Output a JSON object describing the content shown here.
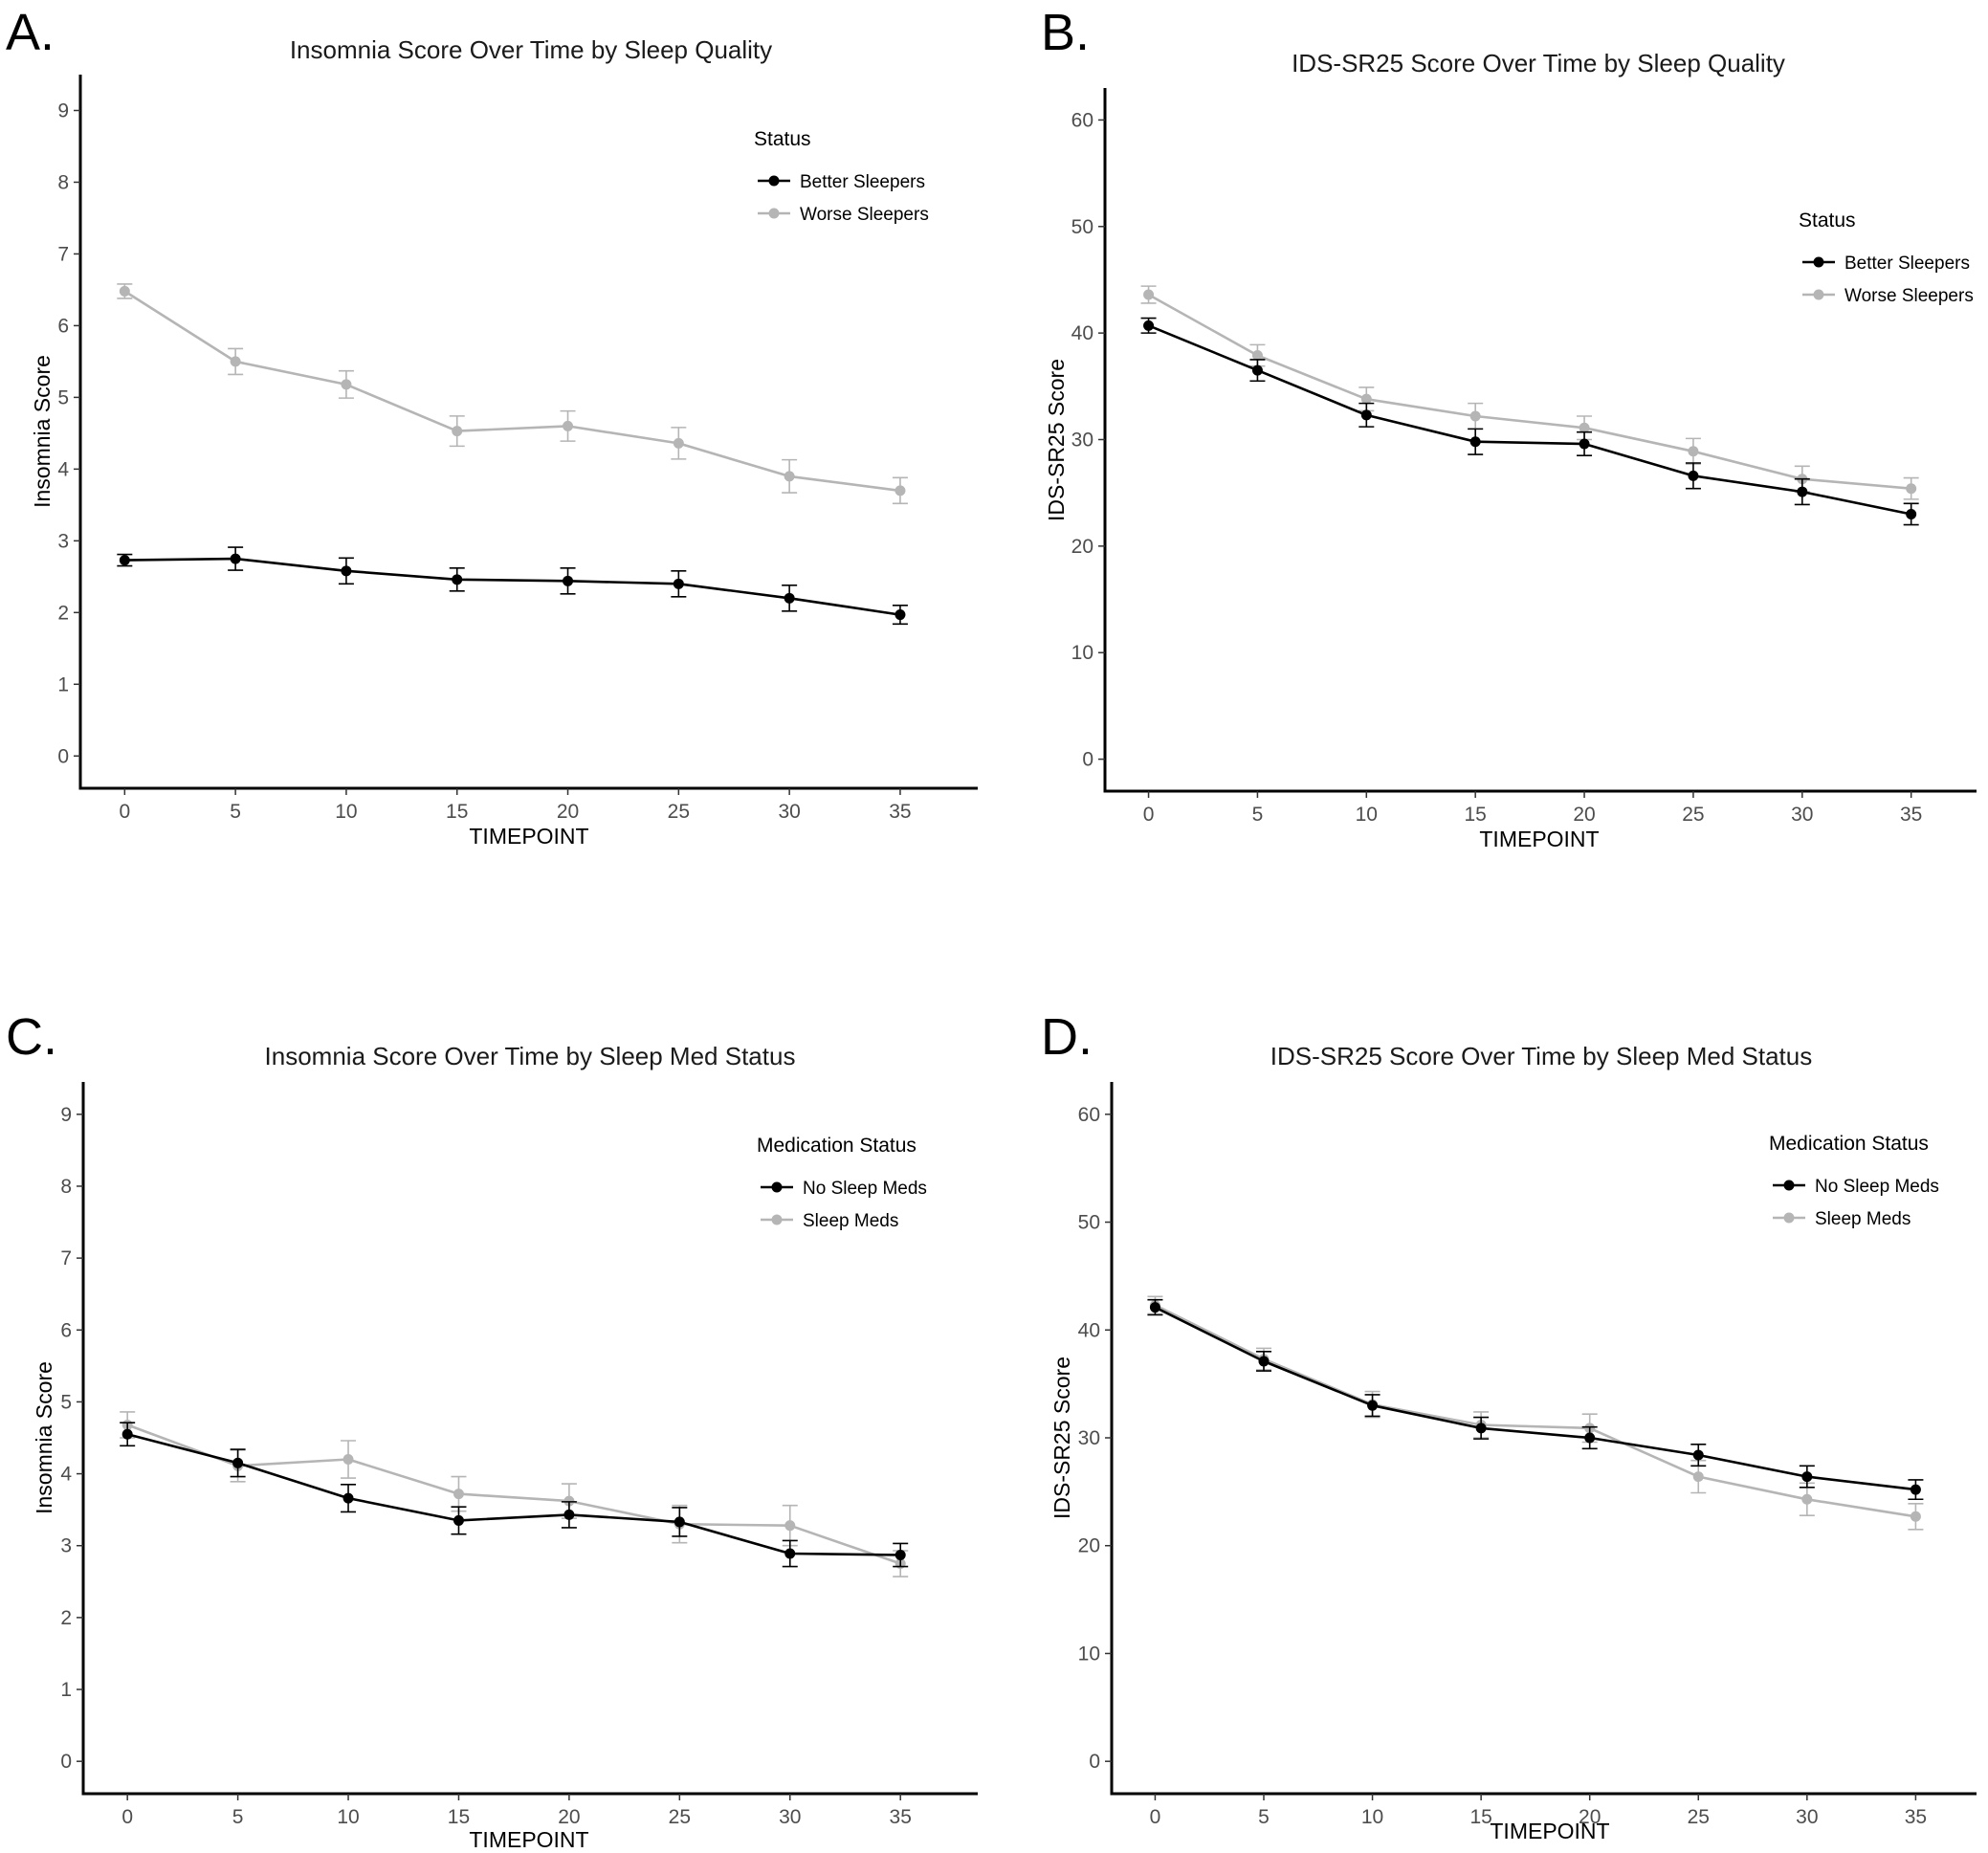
{
  "chart_data": [
    {
      "panel": "A.",
      "type": "line",
      "title": "Insomnia Score Over Time by Sleep Quality",
      "xlabel": "TIMEPOINT",
      "ylabel": "Insomnia Score",
      "x": [
        0,
        5,
        10,
        15,
        20,
        25,
        30,
        35
      ],
      "xticks": [
        0,
        5,
        10,
        15,
        20,
        25,
        30,
        35
      ],
      "yticks": [
        0,
        1,
        2,
        3,
        4,
        5,
        6,
        7,
        8,
        9
      ],
      "xlim": [
        -2,
        38.5
      ],
      "ylim": [
        -0.45,
        9.5
      ],
      "grid": false,
      "legend_title": "Status",
      "legend_position": "top-right",
      "series": [
        {
          "name": "Better Sleepers",
          "color": "#000000",
          "values": [
            2.73,
            2.75,
            2.58,
            2.46,
            2.44,
            2.4,
            2.2,
            1.97
          ],
          "err": [
            0.08,
            0.16,
            0.18,
            0.16,
            0.18,
            0.18,
            0.18,
            0.13
          ]
        },
        {
          "name": "Worse Sleepers",
          "color": "#b5b5b5",
          "values": [
            6.48,
            5.5,
            5.18,
            4.53,
            4.6,
            4.36,
            3.9,
            3.7
          ],
          "err": [
            0.1,
            0.18,
            0.19,
            0.21,
            0.21,
            0.22,
            0.23,
            0.18
          ]
        }
      ]
    },
    {
      "panel": "B.",
      "type": "line",
      "title": "IDS-SR25 Score Over Time by Sleep Quality",
      "xlabel": "TIMEPOINT",
      "ylabel": "IDS-SR25 Score",
      "x": [
        0,
        5,
        10,
        15,
        20,
        25,
        30,
        35
      ],
      "xticks": [
        0,
        5,
        10,
        15,
        20,
        25,
        30,
        35
      ],
      "yticks": [
        0,
        10,
        20,
        30,
        40,
        50,
        60
      ],
      "xlim": [
        -2,
        38
      ],
      "ylim": [
        -3,
        63
      ],
      "grid": false,
      "legend_title": "Status",
      "legend_position": "top-right",
      "series": [
        {
          "name": "Better Sleepers",
          "color": "#000000",
          "values": [
            40.7,
            36.5,
            32.3,
            29.8,
            29.6,
            26.6,
            25.1,
            23.0
          ],
          "err": [
            0.7,
            1.0,
            1.1,
            1.2,
            1.1,
            1.2,
            1.2,
            1.0
          ]
        },
        {
          "name": "Worse Sleepers",
          "color": "#b5b5b5",
          "values": [
            43.6,
            37.9,
            33.8,
            32.2,
            31.1,
            28.9,
            26.3,
            25.4
          ],
          "err": [
            0.8,
            1.0,
            1.1,
            1.2,
            1.1,
            1.2,
            1.2,
            1.0
          ]
        }
      ]
    },
    {
      "panel": "C.",
      "type": "line",
      "title": "Insomnia Score Over Time by Sleep Med Status",
      "xlabel": "TIMEPOINT",
      "ylabel": "Insomnia Score",
      "x": [
        0,
        5,
        10,
        15,
        20,
        25,
        30,
        35
      ],
      "xticks": [
        0,
        5,
        10,
        15,
        20,
        25,
        30,
        35
      ],
      "yticks": [
        0,
        1,
        2,
        3,
        4,
        5,
        6,
        7,
        8,
        9
      ],
      "xlim": [
        -2,
        38.5
      ],
      "ylim": [
        -0.45,
        9.45
      ],
      "grid": false,
      "legend_title": "Medication Status",
      "legend_position": "top-right",
      "series": [
        {
          "name": "No Sleep Meds",
          "color": "#000000",
          "values": [
            4.55,
            4.15,
            3.66,
            3.35,
            3.43,
            3.33,
            2.89,
            2.87
          ],
          "err": [
            0.16,
            0.19,
            0.19,
            0.19,
            0.18,
            0.2,
            0.18,
            0.16
          ]
        },
        {
          "name": "Sleep Meds",
          "color": "#b5b5b5",
          "values": [
            4.68,
            4.11,
            4.2,
            3.72,
            3.62,
            3.3,
            3.28,
            2.75
          ],
          "err": [
            0.18,
            0.22,
            0.26,
            0.24,
            0.24,
            0.26,
            0.28,
            0.18
          ]
        }
      ]
    },
    {
      "panel": "D.",
      "type": "line",
      "title": "IDS-SR25 Score Over Time by Sleep Med Status",
      "xlabel": "TIMEPOINT",
      "ylabel": "IDS-SR25 Score",
      "x": [
        0,
        5,
        10,
        15,
        20,
        25,
        30,
        35
      ],
      "xticks": [
        0,
        5,
        10,
        15,
        20,
        25,
        30,
        35
      ],
      "yticks": [
        0,
        10,
        20,
        30,
        40,
        50,
        60
      ],
      "xlim": [
        -2,
        37.8
      ],
      "ylim": [
        -3,
        63
      ],
      "grid": false,
      "legend_title": "Medication Status",
      "legend_position": "top-right",
      "series": [
        {
          "name": "No Sleep Meds",
          "color": "#000000",
          "values": [
            42.1,
            37.1,
            33.0,
            30.9,
            30.0,
            28.4,
            26.4,
            25.2
          ],
          "err": [
            0.7,
            0.9,
            1.0,
            1.0,
            1.0,
            1.0,
            1.0,
            0.9
          ]
        },
        {
          "name": "Sleep Meds",
          "color": "#b5b5b5",
          "values": [
            42.3,
            37.3,
            33.1,
            31.2,
            30.9,
            26.4,
            24.3,
            22.7
          ],
          "err": [
            0.8,
            1.0,
            1.2,
            1.2,
            1.3,
            1.5,
            1.5,
            1.2
          ]
        }
      ]
    }
  ]
}
